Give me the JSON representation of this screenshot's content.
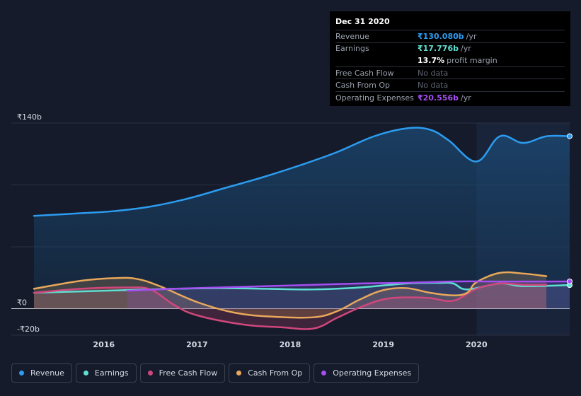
{
  "tooltip": {
    "date": "Dec 31 2020",
    "rows": [
      {
        "label": "Revenue",
        "value": "₹130.080b",
        "unit": "/yr",
        "color": "#2c9cf0"
      },
      {
        "label": "Earnings",
        "value": "₹17.776b",
        "unit": "/yr",
        "color": "#5ee0d2"
      },
      {
        "label": "",
        "value": "13.7%",
        "unit": "profit margin",
        "color": "#ffffff"
      },
      {
        "label": "Free Cash Flow",
        "value": "No data",
        "unit": "",
        "color": ""
      },
      {
        "label": "Cash From Op",
        "value": "No data",
        "unit": "",
        "color": ""
      },
      {
        "label": "Operating Expenses",
        "value": "₹20.556b",
        "unit": "/yr",
        "color": "#a54ef2"
      }
    ]
  },
  "legend": [
    {
      "label": "Revenue",
      "color": "#2c9cf0"
    },
    {
      "label": "Earnings",
      "color": "#5ee0d2"
    },
    {
      "label": "Free Cash Flow",
      "color": "#d0477d"
    },
    {
      "label": "Cash From Op",
      "color": "#e9a85a"
    },
    {
      "label": "Operating Expenses",
      "color": "#a54ef2"
    }
  ],
  "chart_data": {
    "type": "area",
    "title": "",
    "xlabel": "",
    "ylabel": "",
    "ylim": [
      -20,
      140
    ],
    "y_tick_labels": [
      "₹140b",
      "₹0",
      "-₹20b"
    ],
    "y_ticks": [
      140,
      0,
      -20
    ],
    "x_tick_labels": [
      "2016",
      "2017",
      "2018",
      "2019",
      "2020"
    ],
    "x_ticks": [
      2016,
      2017,
      2018,
      2019,
      2020
    ],
    "xlim": [
      2015.25,
      2021.0
    ],
    "highlight_from": 2020.0,
    "grid": true,
    "legend_position": "bottom",
    "series": [
      {
        "name": "Revenue",
        "color": "#2c9cf0",
        "x": [
          2015.25,
          2015.75,
          2016.1,
          2016.5,
          2016.9,
          2017.3,
          2017.7,
          2018.1,
          2018.5,
          2018.9,
          2019.25,
          2019.5,
          2019.7,
          2020.0,
          2020.25,
          2020.5,
          2020.75,
          2021.0
        ],
        "values": [
          70,
          72,
          73.5,
          77,
          83,
          91,
          99,
          108,
          118,
          130,
          136,
          135,
          127,
          111,
          130,
          125,
          130,
          130.08
        ]
      },
      {
        "name": "Earnings",
        "color": "#5ee0d2",
        "x": [
          2015.25,
          2015.75,
          2016.25,
          2016.75,
          2017.25,
          2017.75,
          2018.25,
          2018.75,
          2019.25,
          2019.6,
          2019.75,
          2019.9,
          2020.25,
          2020.5,
          2021.0
        ],
        "values": [
          12,
          13,
          14,
          15,
          15.5,
          15,
          14.5,
          16,
          19,
          19.5,
          19,
          14.5,
          19,
          17,
          17.776
        ]
      },
      {
        "name": "Free Cash Flow",
        "color": "#d0477d",
        "x": [
          2015.25,
          2015.75,
          2016.25,
          2016.5,
          2016.75,
          2017.0,
          2017.5,
          2017.9,
          2018.25,
          2018.5,
          2018.75,
          2019.0,
          2019.25,
          2019.5,
          2019.75,
          2020.0,
          2020.25,
          2020.5,
          2020.75
        ],
        "values": [
          12,
          15,
          16,
          14.5,
          3,
          -5,
          -12,
          -14,
          -15,
          -7,
          1,
          7,
          8.5,
          8,
          6,
          15,
          19,
          18,
          18
        ]
      },
      {
        "name": "Cash From Op",
        "color": "#e9a85a",
        "x": [
          2015.25,
          2015.75,
          2016.1,
          2016.35,
          2016.6,
          2017.0,
          2017.4,
          2017.8,
          2018.25,
          2018.5,
          2018.75,
          2019.0,
          2019.25,
          2019.5,
          2019.75,
          2019.9,
          2020.0,
          2020.25,
          2020.5,
          2020.75
        ],
        "values": [
          15,
          21,
          23,
          22.5,
          17,
          5,
          -3,
          -6,
          -6.5,
          -2,
          7,
          14,
          15.5,
          12,
          10,
          12,
          20,
          27,
          26.5,
          24.5
        ]
      },
      {
        "name": "Operating Expenses",
        "color": "#a54ef2",
        "x": [
          2016.25,
          2016.75,
          2017.25,
          2017.75,
          2018.25,
          2018.75,
          2019.25,
          2019.75,
          2020.25,
          2020.75,
          2021.0
        ],
        "values": [
          13.5,
          15,
          16,
          17,
          18,
          19,
          19.5,
          20.5,
          20.5,
          20.5,
          20.556
        ]
      }
    ]
  }
}
